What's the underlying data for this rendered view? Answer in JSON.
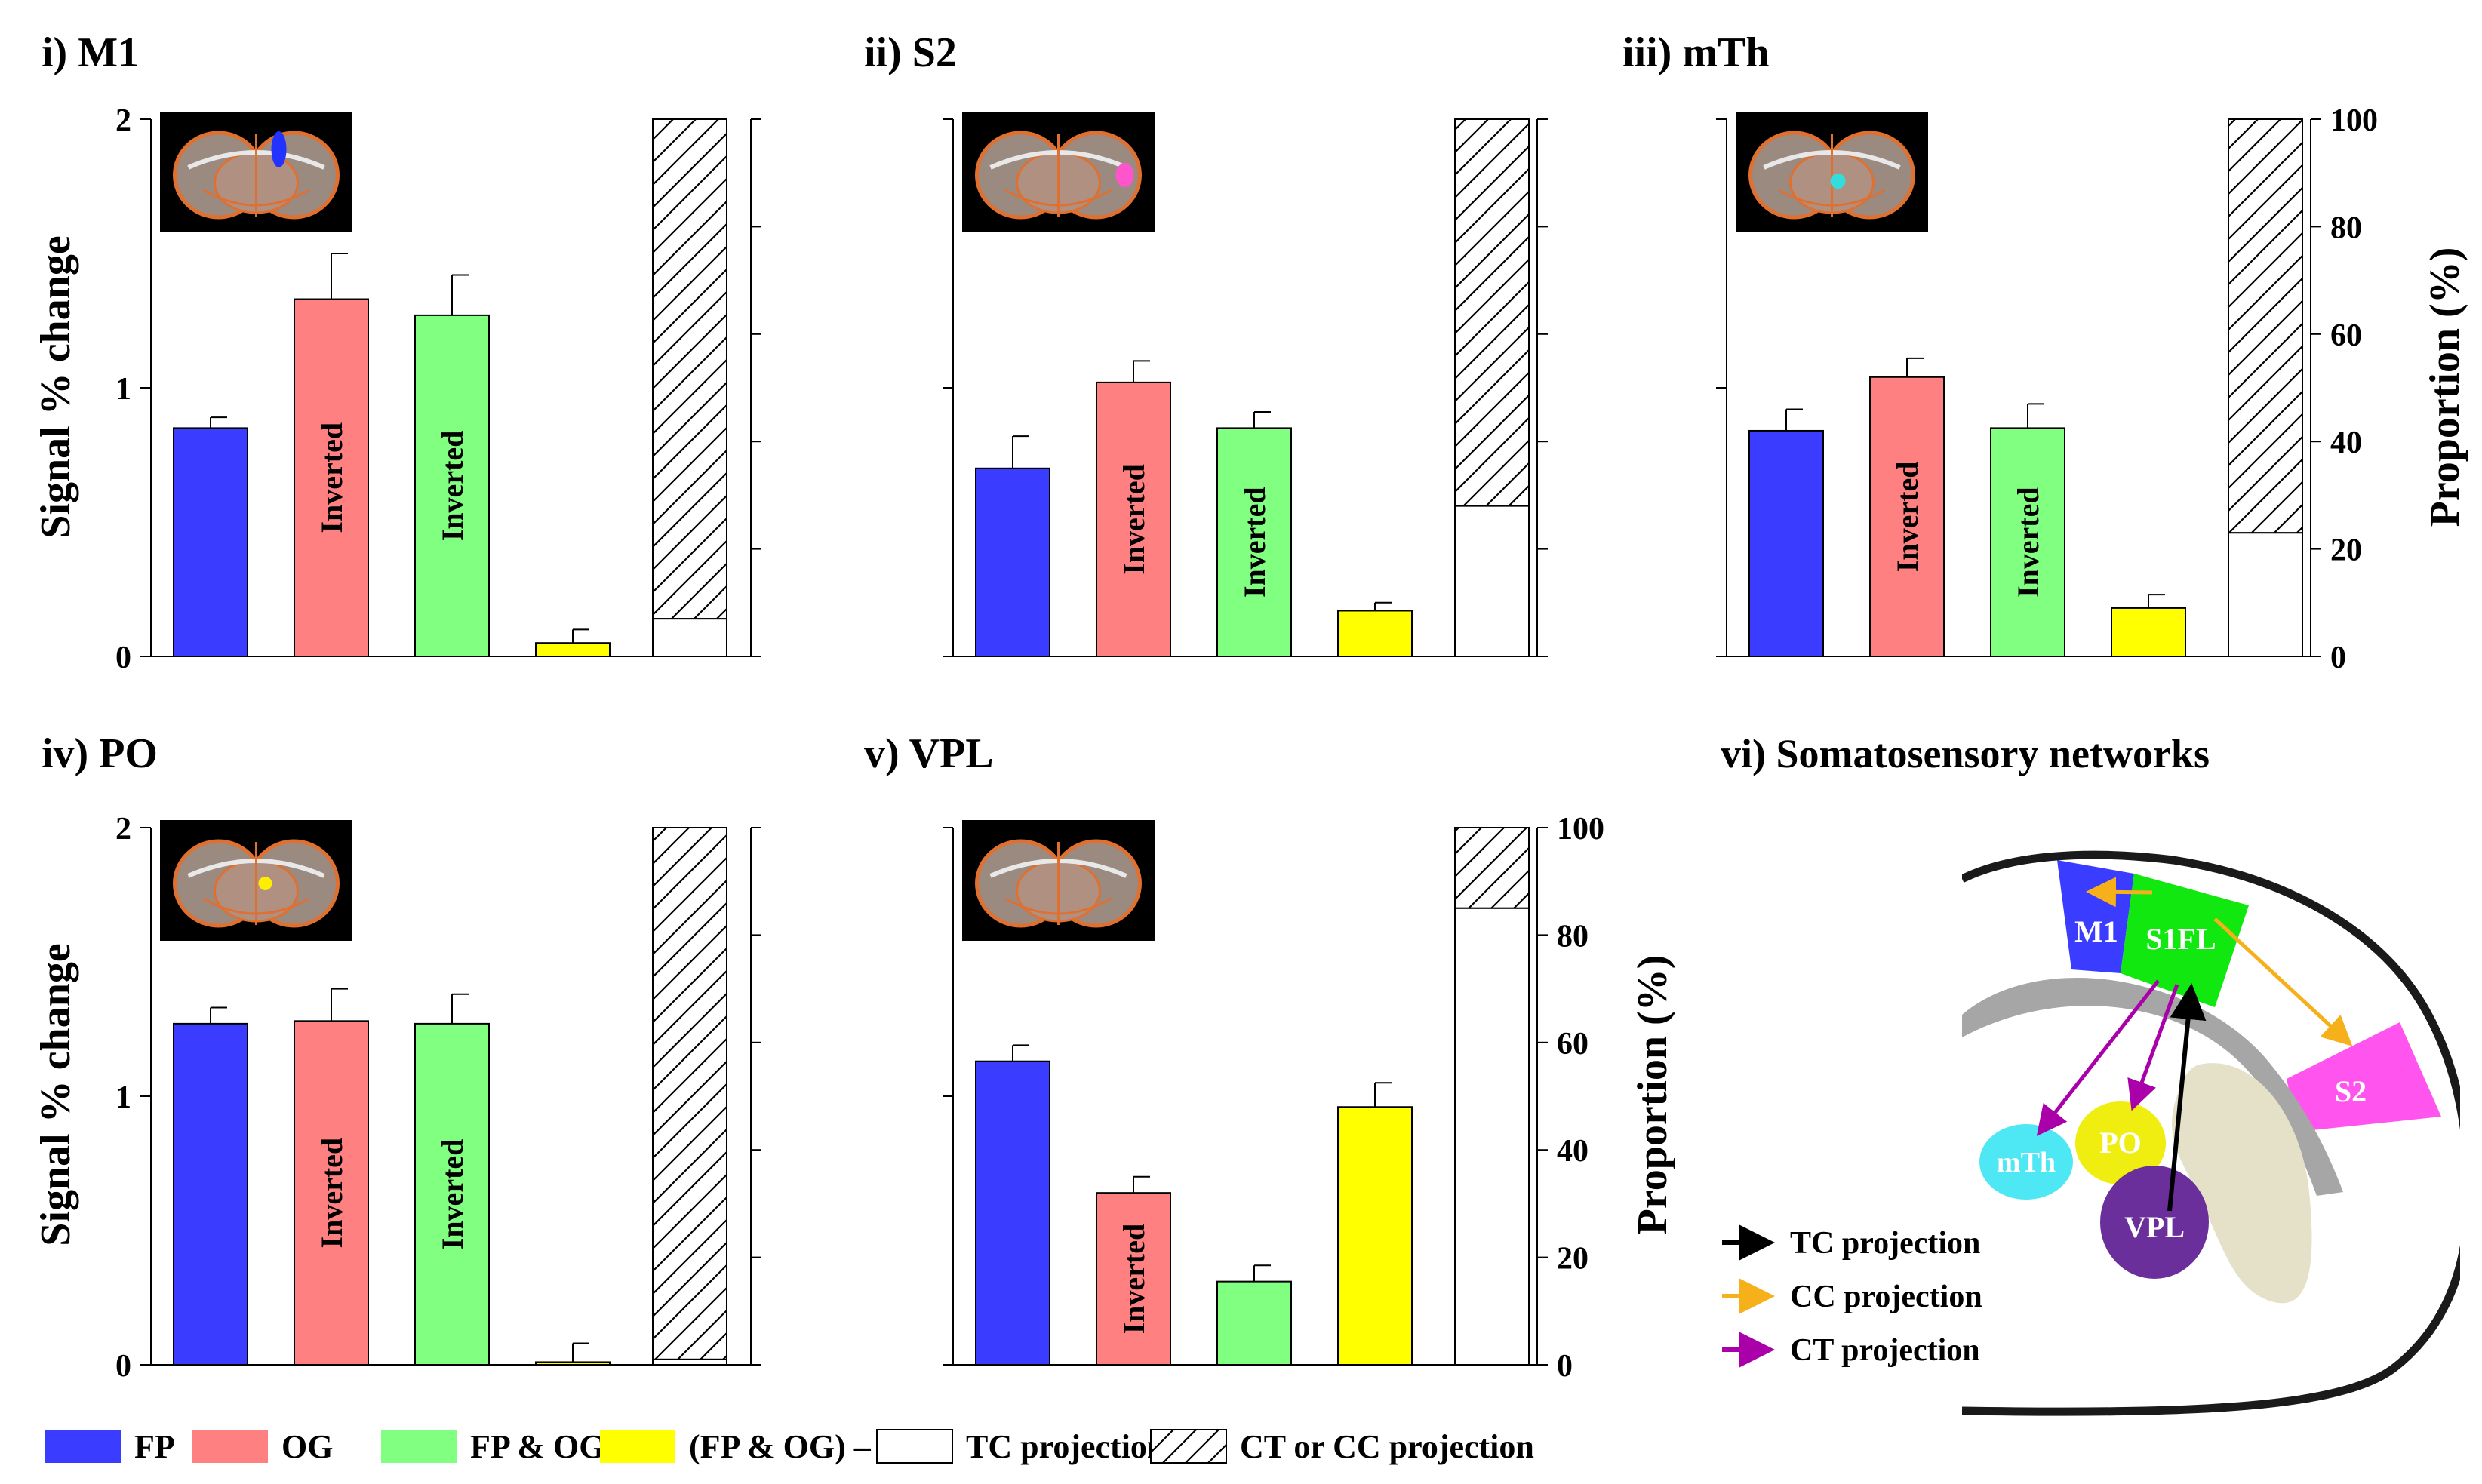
{
  "figure": {
    "y_axis_label": "Signal % change",
    "y2_axis_label": "Proportion (%)",
    "inverted_label": "Inverted",
    "left_ticks": [
      "0",
      "1",
      "2"
    ],
    "right_ticks": [
      "0",
      "20",
      "40",
      "60",
      "80",
      "100"
    ],
    "colors": {
      "FP": "#3a3dff",
      "OG": "#ff8080",
      "FP & OG": "#80ff80",
      "(FP & OG) – OG": "#ffff00",
      "TC projection": "#ffffff",
      "CT or CC projection": "hatch"
    },
    "legend": [
      {
        "key": "FP",
        "label": "FP"
      },
      {
        "key": "OG",
        "label": "OG"
      },
      {
        "key": "FP & OG",
        "label": "FP & OG"
      },
      {
        "key": "(FP & OG) – OG",
        "label": "(FP & OG) – OG"
      },
      {
        "key": "TC projection",
        "label": "TC projection"
      },
      {
        "key": "CT or CC projection",
        "label": "CT or CC projection"
      }
    ]
  },
  "chart_data": [
    {
      "type": "bar",
      "title": "i) M1",
      "region_color": "#2233ff",
      "categories": [
        "FP",
        "OG",
        "FP & OG",
        "(FP & OG) – OG"
      ],
      "values": [
        0.85,
        1.33,
        1.27,
        0.05
      ],
      "errors": [
        0.04,
        0.17,
        0.15,
        0.05
      ],
      "inverted": [
        false,
        true,
        true,
        false
      ],
      "ylabel": "Signal % change",
      "ylim": [
        0,
        2
      ],
      "proportion": {
        "tc": 7,
        "ct_cc": 93
      },
      "y2label": "",
      "y2lim": [
        0,
        100
      ]
    },
    {
      "type": "bar",
      "title": "ii) S2",
      "region_color": "#ff55cc",
      "categories": [
        "FP",
        "OG",
        "FP & OG",
        "(FP & OG) – OG"
      ],
      "values": [
        0.7,
        1.02,
        0.85,
        0.17
      ],
      "errors": [
        0.12,
        0.08,
        0.06,
        0.03
      ],
      "inverted": [
        false,
        true,
        true,
        false
      ],
      "ylabel": "",
      "ylim": [
        0,
        2
      ],
      "proportion": {
        "tc": 28,
        "ct_cc": 72
      },
      "y2label": "",
      "y2lim": [
        0,
        100
      ]
    },
    {
      "type": "bar",
      "title": "iii) mTh",
      "region_color": "#33dddd",
      "categories": [
        "FP",
        "OG",
        "FP & OG",
        "(FP & OG) – OG"
      ],
      "values": [
        0.84,
        1.04,
        0.85,
        0.18
      ],
      "errors": [
        0.08,
        0.07,
        0.09,
        0.05
      ],
      "inverted": [
        false,
        true,
        true,
        false
      ],
      "ylabel": "",
      "ylim": [
        0,
        2
      ],
      "proportion": {
        "tc": 23,
        "ct_cc": 77
      },
      "y2label": "Proportion (%)",
      "y2lim": [
        0,
        100
      ]
    },
    {
      "type": "bar",
      "title": "iv) PO",
      "region_color": "#ffee00",
      "categories": [
        "FP",
        "OG",
        "FP & OG",
        "(FP & OG) – OG"
      ],
      "values": [
        1.27,
        1.28,
        1.27,
        0.01
      ],
      "errors": [
        0.06,
        0.12,
        0.11,
        0.07
      ],
      "inverted": [
        false,
        true,
        true,
        false
      ],
      "ylabel": "Signal % change",
      "ylim": [
        0,
        2
      ],
      "proportion": {
        "tc": 1,
        "ct_cc": 99
      },
      "y2label": "",
      "y2lim": [
        0,
        100
      ]
    },
    {
      "type": "bar",
      "title": "v) VPL",
      "region_color": "",
      "categories": [
        "FP",
        "OG",
        "FP & OG",
        "(FP & OG) – OG"
      ],
      "values": [
        1.13,
        0.64,
        0.31,
        0.96
      ],
      "errors": [
        0.06,
        0.06,
        0.06,
        0.09
      ],
      "inverted": [
        false,
        true,
        false,
        false
      ],
      "ylabel": "",
      "ylim": [
        0,
        2
      ],
      "proportion": {
        "tc": 85,
        "ct_cc": 15
      },
      "y2label": "Proportion (%)",
      "y2lim": [
        0,
        100
      ]
    }
  ],
  "network": {
    "title": "vi) Somatosensory networks",
    "regions": {
      "m1": "M1",
      "s1fl": "S1FL",
      "s2": "S2",
      "mth": "mTh",
      "po": "PO",
      "vpl": "VPL"
    },
    "legend": [
      {
        "label": "TC projection",
        "color": "#000000"
      },
      {
        "label": "CC projection",
        "color": "#f5b01a"
      },
      {
        "label": "CT projection",
        "color": "#aa00aa"
      }
    ]
  }
}
